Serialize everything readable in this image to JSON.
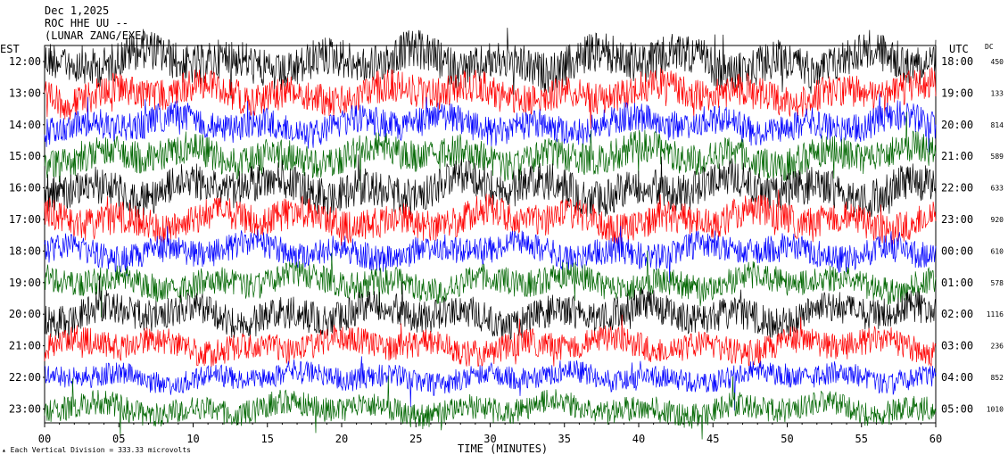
{
  "header": {
    "date": "Dec 1,2025",
    "station": "ROC HHE UU --",
    "extra": "(LUNAR ZANG/EXE)"
  },
  "footer": {
    "scale_text": "Each Vertical Division =  333.33 microvolts"
  },
  "chart_data": {
    "type": "line",
    "title": "",
    "xlabel": "TIME (MINUTES)",
    "left_axis_title": "EST",
    "right_axis_title": "UTC",
    "dc_title": "DC",
    "x_range": [
      0,
      60
    ],
    "x_ticks": [
      "00",
      "05",
      "10",
      "15",
      "20",
      "25",
      "30",
      "35",
      "40",
      "45",
      "50",
      "55",
      "60"
    ],
    "colors": [
      "#000000",
      "#ff0000",
      "#0000ff",
      "#006600"
    ],
    "rows": [
      {
        "est": "12:00",
        "utc": "18:00",
        "dc": "450",
        "color": "#000000",
        "amp": 1.6
      },
      {
        "est": "13:00",
        "utc": "19:00",
        "dc": "133",
        "color": "#ff0000",
        "amp": 1.3
      },
      {
        "est": "14:00",
        "utc": "20:00",
        "dc": "814",
        "color": "#0000ff",
        "amp": 1.2
      },
      {
        "est": "15:00",
        "utc": "21:00",
        "dc": "589",
        "color": "#006600",
        "amp": 1.3
      },
      {
        "est": "16:00",
        "utc": "22:00",
        "dc": "633",
        "color": "#000000",
        "amp": 1.5
      },
      {
        "est": "17:00",
        "utc": "23:00",
        "dc": "920",
        "color": "#ff0000",
        "amp": 1.3
      },
      {
        "est": "18:00",
        "utc": "00:00",
        "dc": "610",
        "color": "#0000ff",
        "amp": 1.1
      },
      {
        "est": "19:00",
        "utc": "01:00",
        "dc": "578",
        "color": "#006600",
        "amp": 1.1
      },
      {
        "est": "20:00",
        "utc": "02:00",
        "dc": "1116",
        "color": "#000000",
        "amp": 1.3
      },
      {
        "est": "21:00",
        "utc": "03:00",
        "dc": "236",
        "color": "#ff0000",
        "amp": 1.1
      },
      {
        "est": "22:00",
        "utc": "04:00",
        "dc": "852",
        "color": "#0000ff",
        "amp": 0.9
      },
      {
        "est": "23:00",
        "utc": "05:00",
        "dc": "1010",
        "color": "#006600",
        "amp": 1.0
      }
    ]
  }
}
